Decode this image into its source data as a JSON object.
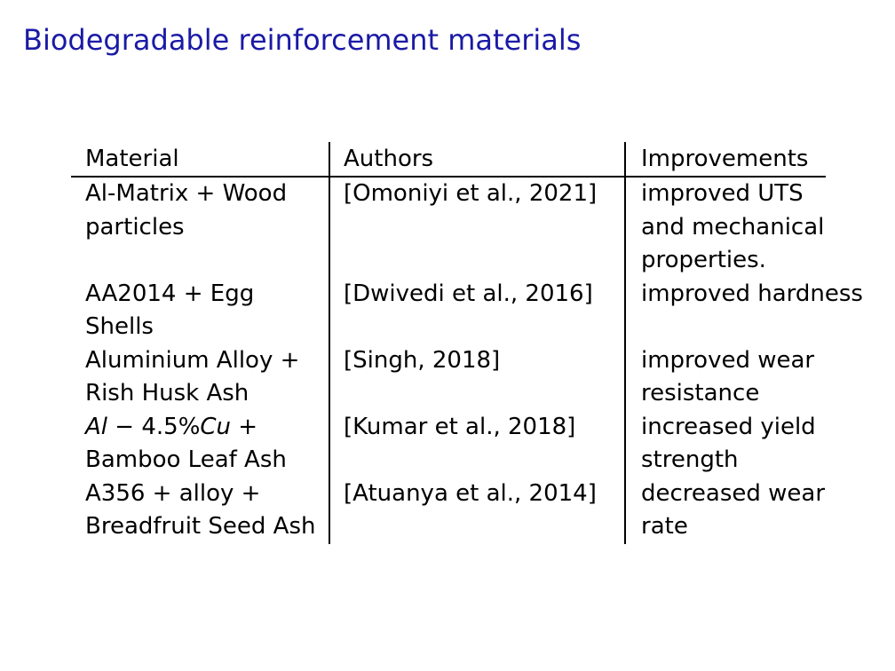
{
  "slide": {
    "title": "Biodegradable reinforcement materials"
  },
  "table": {
    "headers": [
      "Material",
      "Authors",
      "Improvements"
    ],
    "rows": [
      {
        "material": [
          "Al-Matrix + Wood",
          "particles",
          ""
        ],
        "authors": [
          "[Omoniyi et al., 2021]"
        ],
        "improvements": [
          "improved UTS",
          "and mechanical",
          "properties."
        ]
      },
      {
        "material": [
          "AA2014 + Egg",
          "Shells"
        ],
        "authors": [
          "[Dwivedi et al., 2016]"
        ],
        "improvements": [
          "improved hardness"
        ]
      },
      {
        "material": [
          "Aluminium Alloy +",
          "Rish Husk Ash"
        ],
        "authors": [
          "[Singh, 2018]"
        ],
        "improvements": [
          "improved wear",
          "resistance"
        ]
      },
      {
        "material_math": {
          "var1": "Al",
          "minus": " − ",
          "pct": "4.5%",
          "var2": "Cu",
          "plus": " +"
        },
        "material": [
          "Bamboo Leaf Ash"
        ],
        "authors": [
          "[Kumar et al., 2018]"
        ],
        "improvements": [
          "increased yield",
          "strength"
        ]
      },
      {
        "material": [
          "A356 + alloy +",
          "Breadfruit Seed Ash"
        ],
        "authors": [
          "[Atuanya et al., 2014]"
        ],
        "improvements": [
          "decreased wear",
          "rate"
        ]
      }
    ]
  }
}
